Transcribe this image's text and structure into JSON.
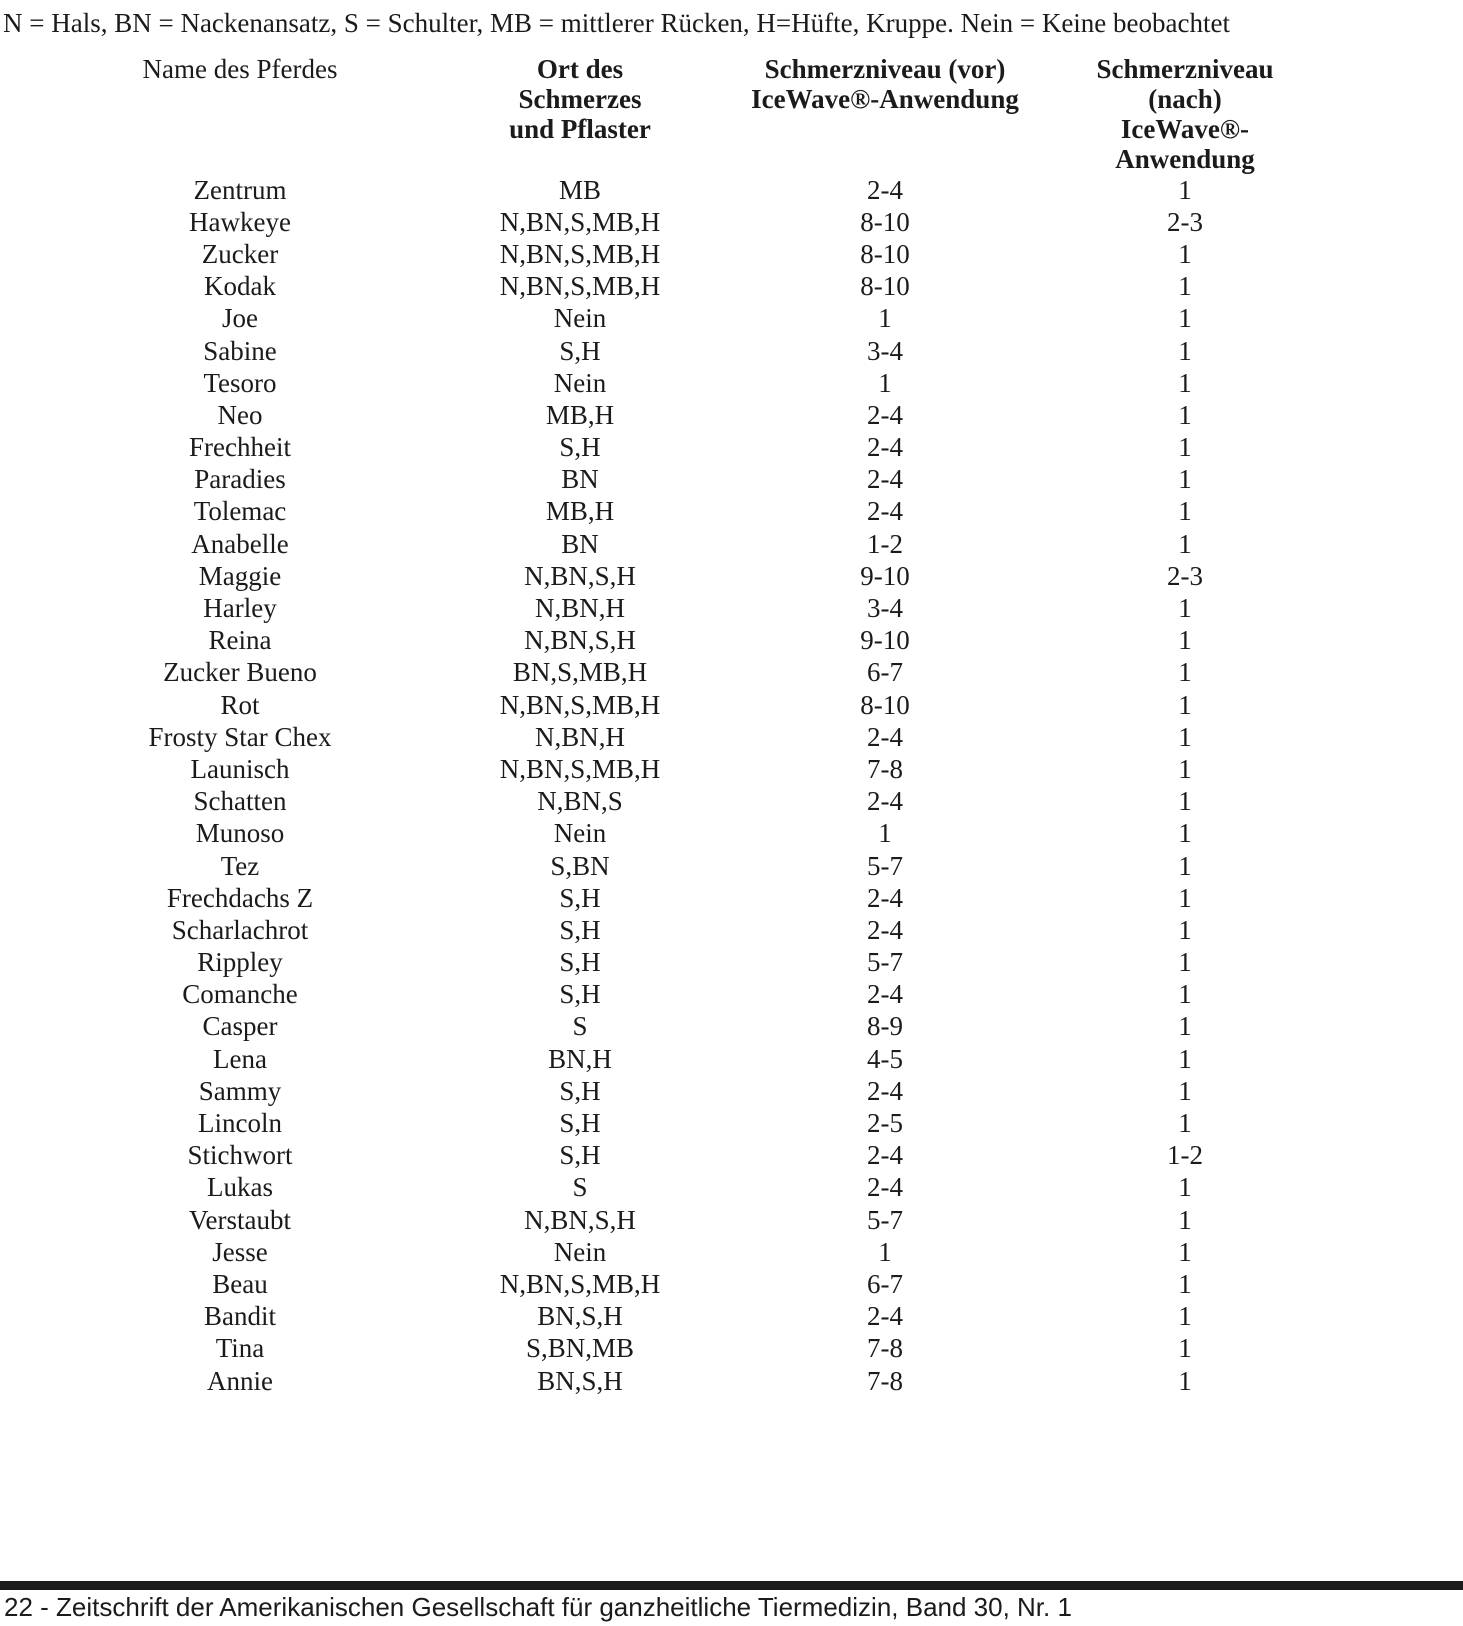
{
  "legend": "N = Hals, BN = Nackenansatz, S = Schulter, MB = mittlerer Rücken, H=Hüfte, Kruppe. Nein = Keine beobachtet",
  "table": {
    "columns": [
      {
        "line1": "Name des Pferdes",
        "line2": ""
      },
      {
        "line1": "Ort des Schmerzes",
        "line2": "und Pflaster"
      },
      {
        "line1": "Schmerzniveau (vor)",
        "line2": "IceWave®-Anwendung"
      },
      {
        "line1": "Schmerzniveau (nach)",
        "line2": "IceWave®-Anwendung"
      }
    ],
    "rows": [
      {
        "name": "Zentrum",
        "location": "MB",
        "pain_before": "2-4",
        "pain_after": "1"
      },
      {
        "name": "Hawkeye",
        "location": "N,BN,S,MB,H",
        "pain_before": "8-10",
        "pain_after": "2-3"
      },
      {
        "name": "Zucker",
        "location": "N,BN,S,MB,H",
        "pain_before": "8-10",
        "pain_after": "1"
      },
      {
        "name": "Kodak",
        "location": "N,BN,S,MB,H",
        "pain_before": "8-10",
        "pain_after": "1"
      },
      {
        "name": "Joe",
        "location": "Nein",
        "pain_before": "1",
        "pain_after": "1"
      },
      {
        "name": "Sabine",
        "location": "S,H",
        "pain_before": "3-4",
        "pain_after": "1"
      },
      {
        "name": "Tesoro",
        "location": "Nein",
        "pain_before": "1",
        "pain_after": "1"
      },
      {
        "name": "Neo",
        "location": "MB,H",
        "pain_before": "2-4",
        "pain_after": "1"
      },
      {
        "name": "Frechheit",
        "location": "S,H",
        "pain_before": "2-4",
        "pain_after": "1"
      },
      {
        "name": "Paradies",
        "location": "BN",
        "pain_before": "2-4",
        "pain_after": "1"
      },
      {
        "name": "Tolemac",
        "location": "MB,H",
        "pain_before": "2-4",
        "pain_after": "1"
      },
      {
        "name": "Anabelle",
        "location": "BN",
        "pain_before": "1-2",
        "pain_after": "1"
      },
      {
        "name": "Maggie",
        "location": "N,BN,S,H",
        "pain_before": "9-10",
        "pain_after": "2-3"
      },
      {
        "name": "Harley",
        "location": "N,BN,H",
        "pain_before": "3-4",
        "pain_after": "1"
      },
      {
        "name": "Reina",
        "location": "N,BN,S,H",
        "pain_before": "9-10",
        "pain_after": "1"
      },
      {
        "name": "Zucker Bueno",
        "location": "BN,S,MB,H",
        "pain_before": "6-7",
        "pain_after": "1"
      },
      {
        "name": "Rot",
        "location": "N,BN,S,MB,H",
        "pain_before": "8-10",
        "pain_after": "1"
      },
      {
        "name": "Frosty Star Chex",
        "location": "N,BN,H",
        "pain_before": "2-4",
        "pain_after": "1"
      },
      {
        "name": "Launisch",
        "location": "N,BN,S,MB,H",
        "pain_before": "7-8",
        "pain_after": "1"
      },
      {
        "name": "Schatten",
        "location": "N,BN,S",
        "pain_before": "2-4",
        "pain_after": "1"
      },
      {
        "name": "Munoso",
        "location": "Nein",
        "pain_before": "1",
        "pain_after": "1"
      },
      {
        "name": "Tez",
        "location": "S,BN",
        "pain_before": "5-7",
        "pain_after": "1"
      },
      {
        "name": "Frechdachs Z",
        "location": "S,H",
        "pain_before": "2-4",
        "pain_after": "1"
      },
      {
        "name": "Scharlachrot",
        "location": "S,H",
        "pain_before": "2-4",
        "pain_after": "1"
      },
      {
        "name": "Rippley",
        "location": "S,H",
        "pain_before": "5-7",
        "pain_after": "1"
      },
      {
        "name": "Comanche",
        "location": "S,H",
        "pain_before": "2-4",
        "pain_after": "1"
      },
      {
        "name": "Casper",
        "location": "S",
        "pain_before": "8-9",
        "pain_after": "1"
      },
      {
        "name": "Lena",
        "location": "BN,H",
        "pain_before": "4-5",
        "pain_after": "1"
      },
      {
        "name": "Sammy",
        "location": "S,H",
        "pain_before": "2-4",
        "pain_after": "1"
      },
      {
        "name": "Lincoln",
        "location": "S,H",
        "pain_before": "2-5",
        "pain_after": "1"
      },
      {
        "name": "Stichwort",
        "location": "S,H",
        "pain_before": "2-4",
        "pain_after": "1-2"
      },
      {
        "name": "Lukas",
        "location": "S",
        "pain_before": "2-4",
        "pain_after": "1"
      },
      {
        "name": "Verstaubt",
        "location": "N,BN,S,H",
        "pain_before": "5-7",
        "pain_after": "1"
      },
      {
        "name": "Jesse",
        "location": "Nein",
        "pain_before": "1",
        "pain_after": "1"
      },
      {
        "name": "Beau",
        "location": "N,BN,S,MB,H",
        "pain_before": "6-7",
        "pain_after": "1"
      },
      {
        "name": "Bandit",
        "location": "BN,S,H",
        "pain_before": "2-4",
        "pain_after": "1"
      },
      {
        "name": "Tina",
        "location": "S,BN,MB",
        "pain_before": "7-8",
        "pain_after": "1"
      },
      {
        "name": "Annie",
        "location": "BN,S,H",
        "pain_before": "7-8",
        "pain_after": "1"
      }
    ]
  },
  "footer": "22 - Zeitschrift der Amerikanischen Gesellschaft für ganzheitliche Tiermedizin, Band 30, Nr. 1"
}
